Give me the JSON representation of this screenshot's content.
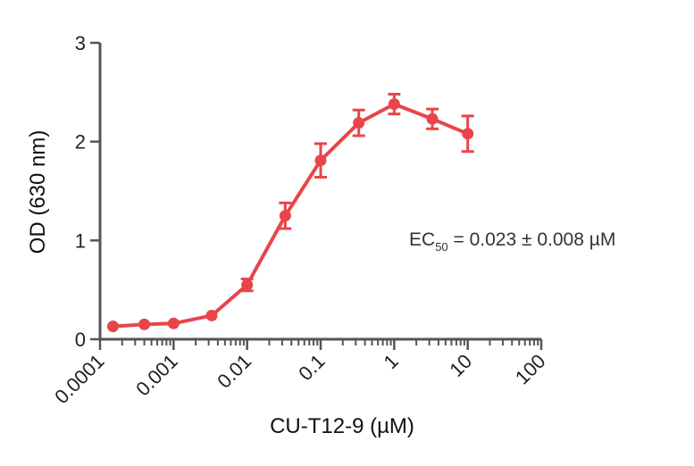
{
  "chart_data": {
    "type": "line",
    "xlabel": "CU-T12-9 (µM)",
    "ylabel": "OD (630 nm)",
    "x_scale": "log",
    "xlim": [
      0.0001,
      100
    ],
    "ylim": [
      0,
      3
    ],
    "x_ticks": [
      "0.0001",
      "0.001",
      "0.01",
      "0.1",
      "1",
      "10",
      "100"
    ],
    "y_ticks": [
      "0",
      "1",
      "2",
      "3"
    ],
    "grid": false,
    "series": [
      {
        "color": "#e8454a",
        "x": [
          0.00015,
          0.0004,
          0.001,
          0.0033,
          0.01,
          0.033,
          0.1,
          0.33,
          1,
          3.3,
          10
        ],
        "y": [
          0.13,
          0.15,
          0.16,
          0.24,
          0.55,
          1.25,
          1.81,
          2.19,
          2.38,
          2.23,
          2.08
        ],
        "error": [
          0.0,
          0.0,
          0.0,
          0.0,
          0.06,
          0.13,
          0.17,
          0.13,
          0.1,
          0.1,
          0.18
        ]
      }
    ],
    "annotation": {
      "prefix": "EC",
      "subscript": "50",
      "suffix": " = 0.023 ± 0.008 µM"
    }
  }
}
